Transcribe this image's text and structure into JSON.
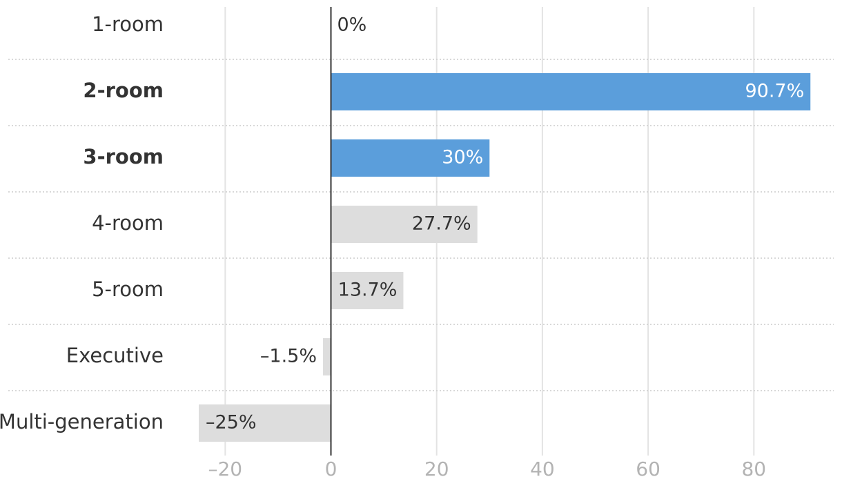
{
  "chart_data": {
    "type": "bar",
    "orientation": "horizontal",
    "categories": [
      "1-room",
      "2-room",
      "3-room",
      "4-room",
      "5-room",
      "Executive",
      "Multi-generation"
    ],
    "values": [
      0,
      90.7,
      30,
      27.7,
      13.7,
      -1.5,
      -25
    ],
    "value_labels": [
      "0%",
      "90.7%",
      "30%",
      "27.7%",
      "13.7%",
      "–1.5%",
      "–25%"
    ],
    "highlighted": [
      false,
      true,
      true,
      false,
      false,
      false,
      false
    ],
    "xlim": [
      -30,
      90
    ],
    "xticks": [
      -20,
      0,
      20,
      40,
      60,
      80
    ],
    "xtick_labels": [
      "–20",
      "0",
      "20",
      "40",
      "60",
      "80"
    ],
    "title": "",
    "xlabel": "",
    "ylabel": "",
    "grid": true,
    "colors": {
      "highlight": "#5b9edb",
      "normal": "#dddddd",
      "zero_line": "#333333",
      "grid": "#e3e3e3",
      "row_separator": "#cccccc",
      "label_on_highlight": "#ffffff",
      "label_default": "#333333",
      "tick_label": "#b3b3b3"
    }
  }
}
